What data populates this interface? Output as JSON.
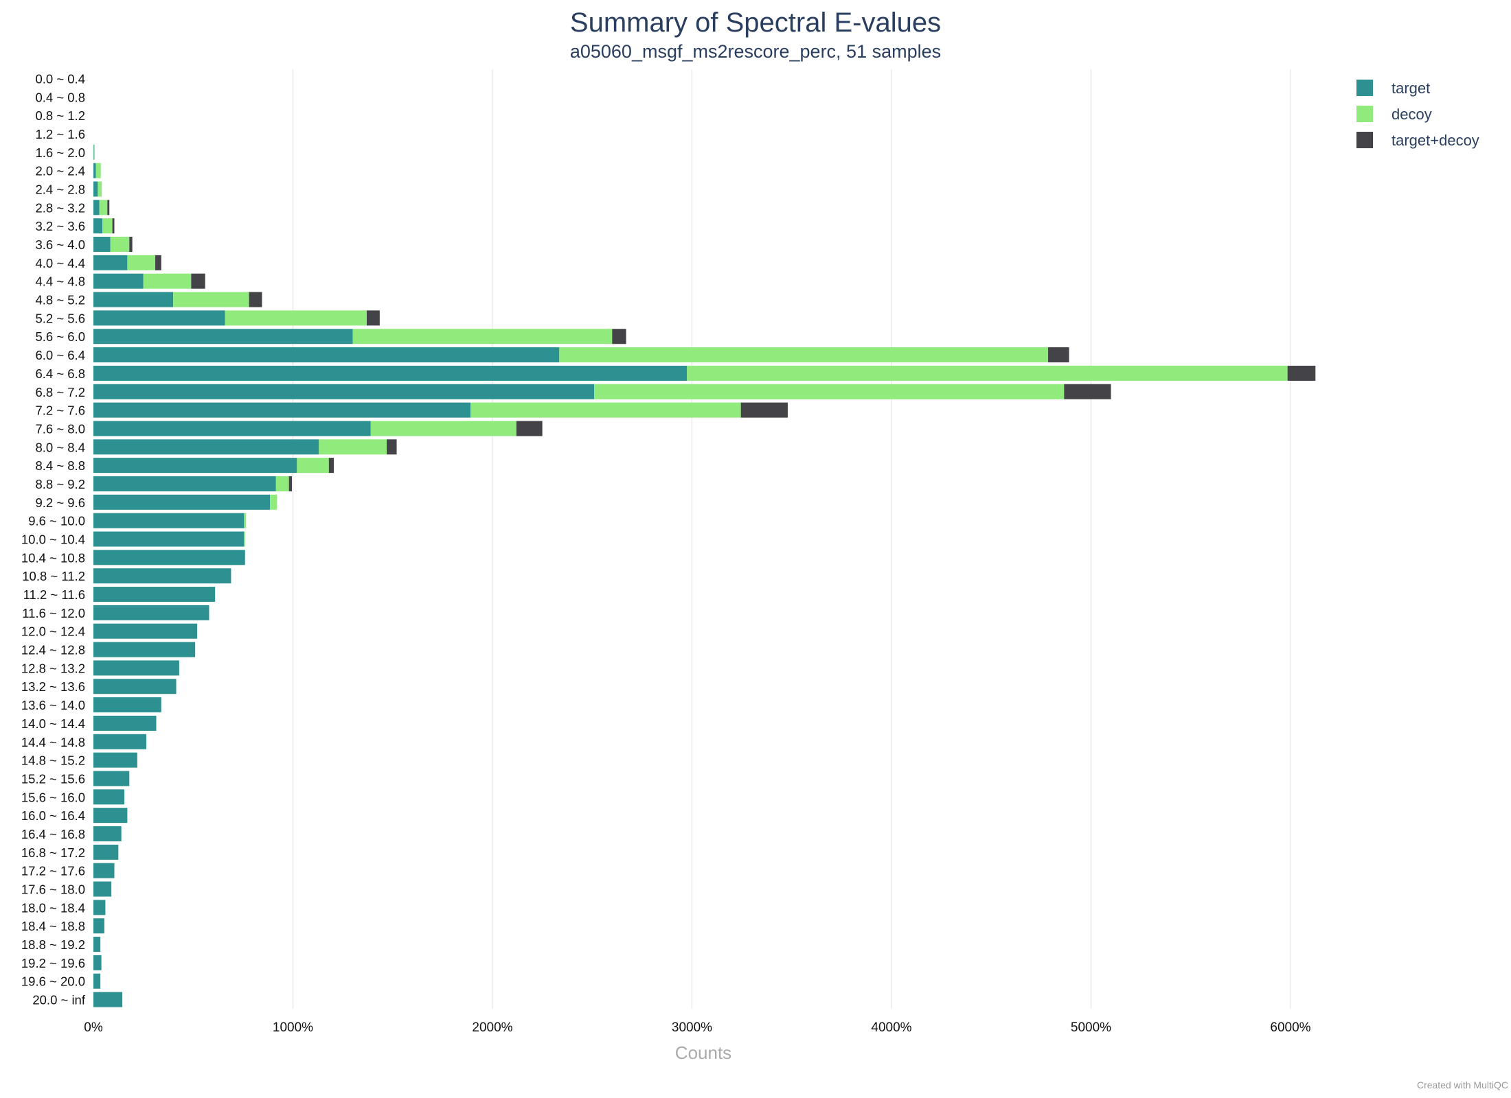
{
  "chart_data": {
    "type": "bar",
    "orientation": "horizontal",
    "stacked": true,
    "title": "Summary of Spectral E-values",
    "subtitle": "a05060_msgf_ms2rescore_perc, 51 samples",
    "xlabel": "Counts",
    "ylabel": "",
    "xlim": [
      0,
      7000
    ],
    "x_ticks": [
      "0%",
      "1000%",
      "2000%",
      "3000%",
      "4000%",
      "5000%",
      "6000%"
    ],
    "x_tick_values": [
      0,
      1000,
      2000,
      3000,
      4000,
      5000,
      6000
    ],
    "grid": "vertical",
    "legend_position": "top-right",
    "categories": [
      "0.0 ~ 0.4",
      "0.4 ~ 0.8",
      "0.8 ~ 1.2",
      "1.2 ~ 1.6",
      "1.6 ~ 2.0",
      "2.0 ~ 2.4",
      "2.4 ~ 2.8",
      "2.8 ~ 3.2",
      "3.2 ~ 3.6",
      "3.6 ~ 4.0",
      "4.0 ~ 4.4",
      "4.4 ~ 4.8",
      "4.8 ~ 5.2",
      "5.2 ~ 5.6",
      "5.6 ~ 6.0",
      "6.0 ~ 6.4",
      "6.4 ~ 6.8",
      "6.8 ~ 7.2",
      "7.2 ~ 7.6",
      "7.6 ~ 8.0",
      "8.0 ~ 8.4",
      "8.4 ~ 8.8",
      "8.8 ~ 9.2",
      "9.2 ~ 9.6",
      "9.6 ~ 10.0",
      "10.0 ~ 10.4",
      "10.4 ~ 10.8",
      "10.8 ~ 11.2",
      "11.2 ~ 11.6",
      "11.6 ~ 12.0",
      "12.0 ~ 12.4",
      "12.4 ~ 12.8",
      "12.8 ~ 13.2",
      "13.2 ~ 13.6",
      "13.6 ~ 14.0",
      "14.0 ~ 14.4",
      "14.4 ~ 14.8",
      "14.8 ~ 15.2",
      "15.2 ~ 15.6",
      "15.6 ~ 16.0",
      "16.0 ~ 16.4",
      "16.4 ~ 16.8",
      "16.8 ~ 17.2",
      "17.2 ~ 17.6",
      "17.6 ~ 18.0",
      "18.0 ~ 18.4",
      "18.4 ~ 18.8",
      "18.8 ~ 19.2",
      "19.2 ~ 19.6",
      "19.6 ~ 20.0",
      "20.0 ~ inf"
    ],
    "series": [
      {
        "name": "target",
        "color": "#2e9191",
        "values": [
          0,
          0,
          0,
          0,
          2,
          12,
          22,
          30,
          45,
          85,
          170,
          250,
          400,
          660,
          1300,
          2335,
          2975,
          2510,
          1890,
          1390,
          1130,
          1020,
          915,
          885,
          755,
          755,
          760,
          690,
          610,
          580,
          520,
          510,
          430,
          415,
          340,
          315,
          265,
          220,
          180,
          155,
          170,
          140,
          125,
          105,
          90,
          60,
          55,
          35,
          40,
          35,
          145
        ]
      },
      {
        "name": "decoy",
        "color": "#90ea7c",
        "values": [
          0,
          0,
          0,
          0,
          5,
          25,
          20,
          40,
          50,
          95,
          140,
          240,
          380,
          710,
          1300,
          2450,
          3010,
          2355,
          1355,
          730,
          340,
          160,
          65,
          35,
          10,
          5,
          0,
          0,
          0,
          0,
          0,
          0,
          0,
          0,
          0,
          0,
          0,
          0,
          0,
          0,
          0,
          0,
          0,
          0,
          0,
          0,
          0,
          0,
          0,
          0,
          0
        ]
      },
      {
        "name": "target+decoy",
        "color": "#434348",
        "values": [
          0,
          0,
          0,
          0,
          0,
          0,
          0,
          10,
          10,
          15,
          30,
          70,
          65,
          65,
          70,
          105,
          140,
          235,
          235,
          130,
          50,
          25,
          15,
          0,
          0,
          0,
          0,
          0,
          0,
          0,
          0,
          0,
          0,
          0,
          0,
          0,
          0,
          0,
          0,
          0,
          0,
          0,
          0,
          0,
          0,
          0,
          0,
          0,
          0,
          0,
          0
        ]
      }
    ]
  },
  "credit": "Created with MultiQC"
}
